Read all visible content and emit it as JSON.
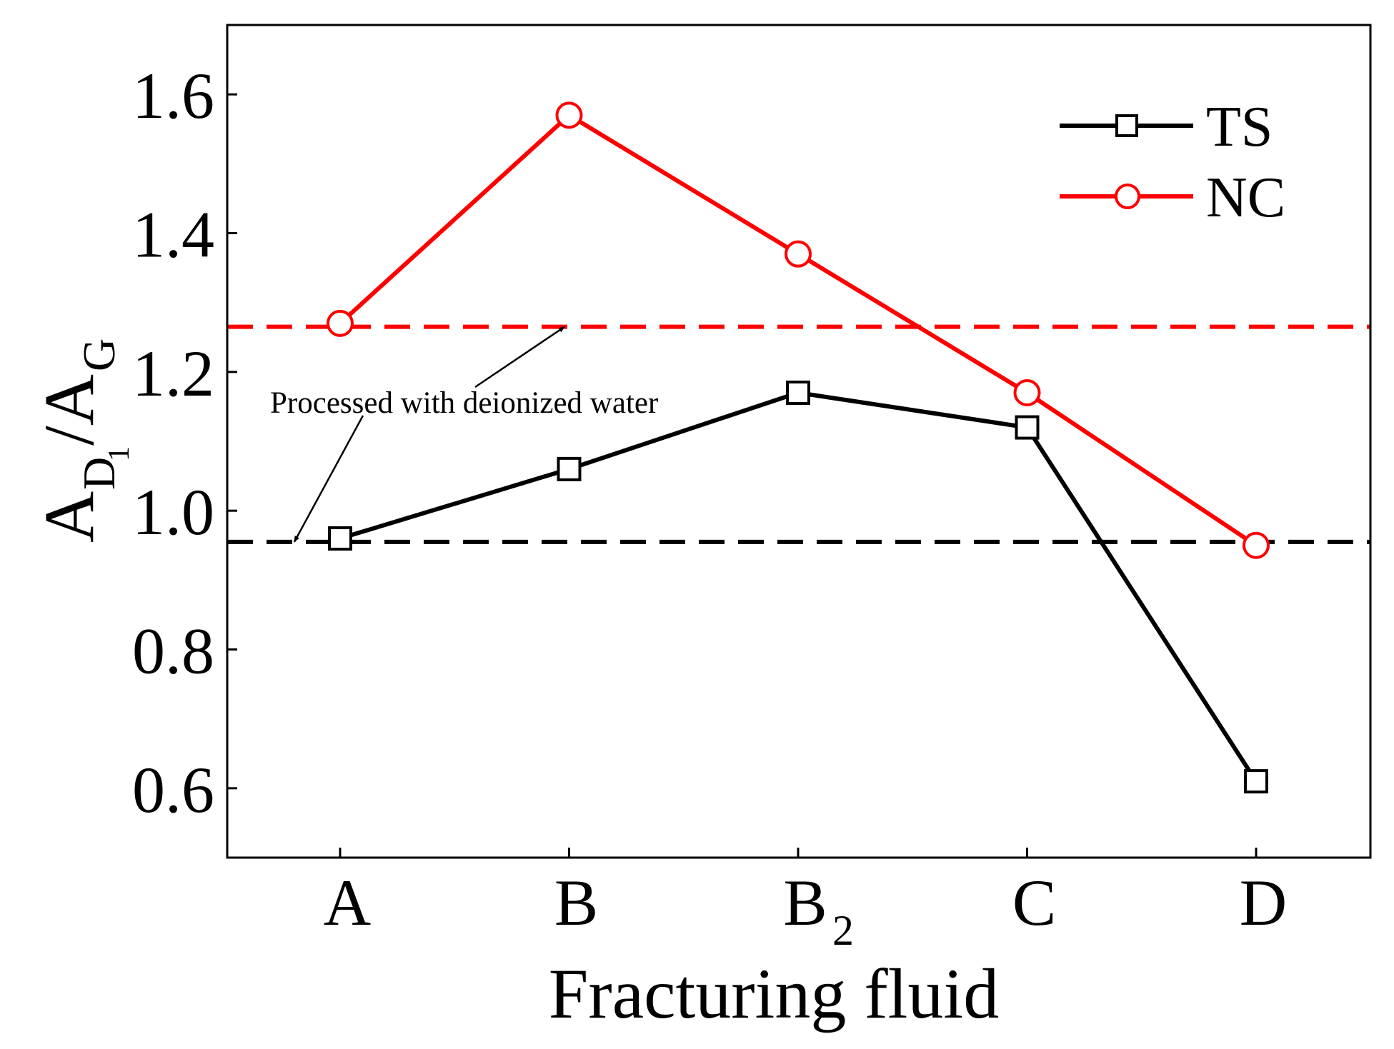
{
  "chart_data": {
    "type": "line",
    "categories": [
      "A",
      "B",
      "B",
      "C",
      "D"
    ],
    "category_subscripts": [
      "",
      "",
      "2",
      "",
      ""
    ],
    "xlabel": "Fracturing fluid",
    "ylabel": {
      "base": "A",
      "sub1": "D",
      "sub1_sub": "1",
      "sep": "/A",
      "sub2": "G"
    },
    "ylim": [
      0.5,
      1.7
    ],
    "yticks": [
      0.6,
      0.8,
      1.0,
      1.2,
      1.4,
      1.6
    ],
    "ytick_labels": [
      "0.6",
      "0.8",
      "1.0",
      "1.2",
      "1.4",
      "1.6"
    ],
    "grid": false,
    "legend_position": "top-right",
    "series": [
      {
        "name": "TS",
        "values": [
          0.96,
          1.06,
          1.17,
          1.12,
          0.61
        ],
        "color": "#000000",
        "marker": "square"
      },
      {
        "name": "NC",
        "values": [
          1.27,
          1.57,
          1.37,
          1.17,
          0.95
        ],
        "color": "#ff0000",
        "marker": "circle"
      }
    ],
    "reference_lines": [
      {
        "value": 1.265,
        "color": "#ff0000",
        "style": "dashed"
      },
      {
        "value": 0.955,
        "color": "#000000",
        "style": "dashed"
      }
    ],
    "annotation": {
      "text": "Processed with deionized water",
      "points_to": [
        {
          "category_index": 0.98,
          "value": 1.265
        },
        {
          "category_index": -0.2,
          "value": 0.955
        }
      ]
    }
  }
}
